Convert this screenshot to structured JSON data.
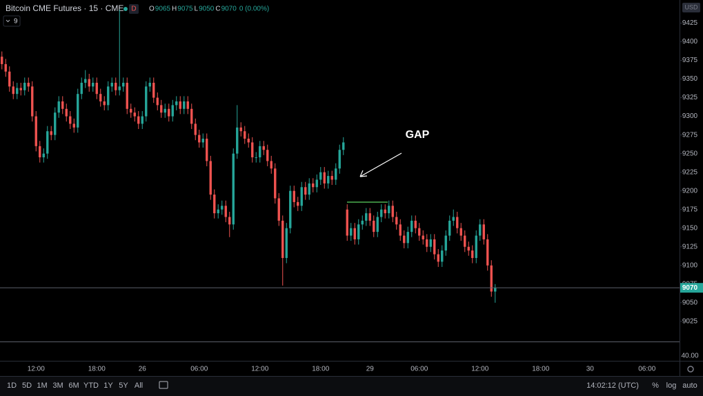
{
  "chart_data": {
    "type": "candlestick",
    "title": "Bitcoin CME Futures · 15 · CME",
    "badge": "D",
    "indicator": "9",
    "currency": "USD",
    "ohlc_letters": [
      "O",
      "H",
      "L",
      "C"
    ],
    "change": "0 (0.00%)",
    "annotation": "GAP",
    "pane_label": "40.00",
    "up_color": "#26a69a",
    "down_color": "#ef5350",
    "ylim": [
      8998,
      9456
    ],
    "yticks": [
      9025,
      9050,
      9075,
      9100,
      9125,
      9150,
      9175,
      9200,
      9225,
      9250,
      9275,
      9300,
      9325,
      9350,
      9375,
      9400,
      9425
    ],
    "grid": false,
    "categories": [
      null,
      null,
      null,
      null,
      null,
      null,
      null,
      null,
      null,
      "12:00",
      null,
      null,
      null,
      null,
      null,
      null,
      null,
      null,
      null,
      null,
      null,
      null,
      null,
      null,
      null,
      "18:00",
      null,
      null,
      null,
      null,
      null,
      null,
      null,
      null,
      null,
      null,
      null,
      "26",
      null,
      null,
      null,
      null,
      null,
      null,
      null,
      null,
      null,
      null,
      null,
      null,
      null,
      null,
      "06:00",
      null,
      null,
      null,
      null,
      null,
      null,
      null,
      null,
      null,
      null,
      null,
      null,
      null,
      null,
      null,
      "12:00",
      null,
      null,
      null,
      null,
      null,
      null,
      null,
      null,
      null,
      null,
      null,
      null,
      null,
      null,
      null,
      "18:00",
      null,
      null,
      null,
      null,
      null,
      null,
      null,
      null,
      null,
      null,
      null,
      null,
      "29",
      null,
      null,
      null,
      null,
      null,
      null,
      null,
      null,
      null,
      null,
      null,
      null,
      "06:00",
      null,
      null,
      null,
      null,
      null,
      null,
      null,
      null,
      null,
      null,
      null,
      null,
      null,
      null,
      null,
      "12:00",
      null,
      null,
      null,
      null,
      null,
      null,
      null,
      null,
      null,
      null,
      null,
      null,
      null,
      null,
      null,
      "18:00",
      null,
      null,
      null,
      null,
      null,
      null,
      null,
      null,
      null,
      null,
      null,
      null,
      "30",
      null,
      null,
      null,
      null,
      null,
      null,
      null,
      null,
      null,
      null,
      null,
      null,
      null,
      null,
      "06:00",
      null,
      null,
      null,
      null,
      null,
      null,
      null,
      null
    ],
    "open": [
      9380,
      9370,
      9360,
      9340,
      9330,
      9338,
      9335,
      9345,
      9340,
      9300,
      9260,
      9245,
      9250,
      9280,
      9275,
      9305,
      9320,
      9310,
      9300,
      9290,
      9285,
      9330,
      9345,
      9350,
      9340,
      9345,
      9330,
      9320,
      9315,
      9340,
      9345,
      9335,
      9340,
      9345,
      9310,
      9305,
      9300,
      9290,
      9300,
      9340,
      9345,
      9325,
      9315,
      9305,
      9310,
      9300,
      9315,
      9320,
      9310,
      9320,
      9310,
      9290,
      9275,
      9265,
      9270,
      9240,
      9195,
      9170,
      9175,
      9180,
      9165,
      9155,
      9250,
      9285,
      9280,
      9270,
      9265,
      9245,
      9245,
      9260,
      9255,
      9240,
      9230,
      9190,
      9160,
      9110,
      9150,
      9200,
      9185,
      9180,
      9205,
      9195,
      9210,
      9205,
      9215,
      9225,
      9210,
      9220,
      9215,
      9230,
      9255,
      9175,
      9140,
      9150,
      9135,
      9155,
      9160,
      9170,
      9160,
      9145,
      9165,
      9175,
      9170,
      9180,
      9165,
      9155,
      9140,
      9130,
      9145,
      9160,
      9150,
      9140,
      9135,
      9125,
      9135,
      9115,
      9105,
      9120,
      9140,
      9160,
      9165,
      9150,
      9140,
      9125,
      9120,
      9110,
      9140,
      9155,
      9135,
      9100,
      9065,
      null,
      null,
      null,
      null,
      null,
      null,
      null,
      null,
      null,
      null,
      null,
      null,
      null,
      null,
      null,
      null,
      null,
      null,
      null,
      null,
      null,
      null,
      null,
      null,
      null,
      null,
      null,
      null,
      null,
      null,
      null,
      null,
      null,
      null,
      null,
      null,
      null,
      null,
      null,
      null,
      null,
      null,
      null,
      null,
      null,
      null,
      null,
      null
    ],
    "high": [
      9387,
      9377,
      9367,
      9347,
      9345,
      9345,
      9352,
      9352,
      9347,
      9307,
      9267,
      9257,
      9287,
      9287,
      9312,
      9327,
      9327,
      9317,
      9307,
      9297,
      9337,
      9352,
      9362,
      9357,
      9352,
      9352,
      9337,
      9327,
      9347,
      9352,
      9352,
      9443,
      9352,
      9352,
      9317,
      9312,
      9307,
      9307,
      9347,
      9352,
      9352,
      9332,
      9322,
      9317,
      9317,
      9322,
      9327,
      9327,
      9327,
      9327,
      9317,
      9297,
      9282,
      9277,
      9277,
      9247,
      9202,
      9182,
      9187,
      9187,
      9172,
      9257,
      9315,
      9292,
      9287,
      9277,
      9272,
      9252,
      9267,
      9267,
      9262,
      9247,
      9237,
      9197,
      9167,
      9157,
      9207,
      9207,
      9192,
      9212,
      9212,
      9217,
      9217,
      9222,
      9232,
      9232,
      9227,
      9227,
      9237,
      9262,
      9272,
      9182,
      9157,
      9157,
      9162,
      9167,
      9177,
      9177,
      9167,
      9172,
      9182,
      9182,
      9187,
      9187,
      9172,
      9162,
      9147,
      9152,
      9167,
      9167,
      9157,
      9147,
      9142,
      9142,
      9142,
      9122,
      9127,
      9147,
      9167,
      9175,
      9172,
      9157,
      9147,
      9132,
      9127,
      9147,
      9162,
      9162,
      9142,
      9107,
      9075,
      null,
      null,
      null,
      null,
      null,
      null,
      null,
      null,
      null,
      null,
      null,
      null,
      null,
      null,
      null,
      null,
      null,
      null,
      null,
      null,
      null,
      null,
      null,
      null,
      null,
      null,
      null,
      null,
      null,
      null,
      null,
      null,
      null,
      null,
      null,
      null,
      null,
      null,
      null,
      null,
      null,
      null,
      null,
      null,
      null,
      null,
      null,
      null
    ],
    "low": [
      9363,
      9353,
      9333,
      9323,
      9323,
      9328,
      9328,
      9333,
      9293,
      9253,
      9238,
      9238,
      9243,
      9268,
      9268,
      9298,
      9303,
      9293,
      9283,
      9278,
      9278,
      9323,
      9338,
      9333,
      9333,
      9323,
      9313,
      9308,
      9308,
      9333,
      9328,
      9328,
      9333,
      9303,
      9298,
      9293,
      9283,
      9283,
      9293,
      9333,
      9318,
      9308,
      9298,
      9298,
      9293,
      9293,
      9308,
      9303,
      9303,
      9303,
      9283,
      9268,
      9258,
      9258,
      9233,
      9188,
      9163,
      9163,
      9168,
      9158,
      9138,
      9148,
      9243,
      9273,
      9263,
      9258,
      9238,
      9238,
      9238,
      9248,
      9233,
      9223,
      9183,
      9153,
      9073,
      9103,
      9143,
      9178,
      9173,
      9173,
      9188,
      9188,
      9198,
      9198,
      9208,
      9203,
      9203,
      9208,
      9208,
      9223,
      9248,
      9133,
      9133,
      9128,
      9128,
      9148,
      9153,
      9153,
      9138,
      9138,
      9158,
      9163,
      9163,
      9158,
      9148,
      9133,
      9123,
      9123,
      9138,
      9143,
      9133,
      9128,
      9118,
      9118,
      9108,
      9098,
      9098,
      9113,
      9133,
      9153,
      9143,
      9133,
      9118,
      9113,
      9103,
      9103,
      9133,
      9128,
      9093,
      9058,
      9050,
      null,
      null,
      null,
      null,
      null,
      null,
      null,
      null,
      null,
      null,
      null,
      null,
      null,
      null,
      null,
      null,
      null,
      null,
      null,
      null,
      null,
      null,
      null,
      null,
      null,
      null,
      null,
      null,
      null,
      null,
      null,
      null,
      null,
      null,
      null,
      null,
      null,
      null,
      null,
      null,
      null,
      null,
      null,
      null,
      null,
      null,
      null,
      null
    ],
    "close": [
      9370,
      9360,
      9340,
      9330,
      9338,
      9335,
      9345,
      9340,
      9300,
      9260,
      9245,
      9250,
      9280,
      9275,
      9305,
      9320,
      9310,
      9300,
      9290,
      9285,
      9330,
      9345,
      9350,
      9340,
      9345,
      9330,
      9320,
      9315,
      9340,
      9345,
      9335,
      9340,
      9345,
      9310,
      9305,
      9300,
      9290,
      9300,
      9340,
      9345,
      9325,
      9315,
      9305,
      9310,
      9300,
      9315,
      9320,
      9310,
      9320,
      9310,
      9290,
      9275,
      9265,
      9270,
      9240,
      9195,
      9170,
      9175,
      9180,
      9165,
      9155,
      9250,
      9285,
      9280,
      9270,
      9265,
      9245,
      9245,
      9260,
      9255,
      9240,
      9230,
      9190,
      9160,
      9110,
      9150,
      9200,
      9185,
      9180,
      9205,
      9195,
      9210,
      9205,
      9215,
      9225,
      9210,
      9220,
      9215,
      9230,
      9255,
      9265,
      9140,
      9150,
      9135,
      9155,
      9160,
      9170,
      9160,
      9145,
      9165,
      9175,
      9170,
      9180,
      9165,
      9155,
      9140,
      9130,
      9145,
      9160,
      9150,
      9140,
      9135,
      9125,
      9135,
      9115,
      9105,
      9120,
      9140,
      9160,
      9165,
      9150,
      9140,
      9125,
      9120,
      9110,
      9140,
      9155,
      9135,
      9100,
      9065,
      9070,
      null,
      null,
      null,
      null,
      null,
      null,
      null,
      null,
      null,
      null,
      null,
      null,
      null,
      null,
      null,
      null,
      null,
      null,
      null,
      null,
      null,
      null,
      null,
      null,
      null,
      null,
      null,
      null,
      null,
      null,
      null,
      null,
      null,
      null,
      null,
      null,
      null,
      null,
      null,
      null,
      null,
      null,
      null,
      null,
      null,
      null,
      null,
      null
    ]
  },
  "toolbar": {
    "ranges": [
      "1D",
      "5D",
      "1M",
      "3M",
      "6M",
      "YTD",
      "1Y",
      "5Y",
      "All"
    ],
    "clock": "14:02:12 (UTC)",
    "options": [
      "%",
      "log",
      "auto"
    ]
  }
}
